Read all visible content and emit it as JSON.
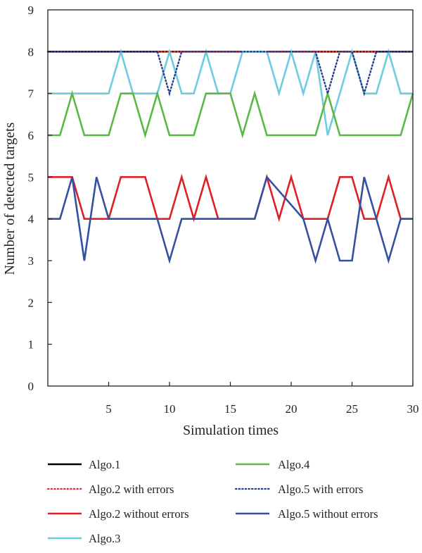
{
  "chart_data": {
    "type": "line",
    "xlabel": "Simulation times",
    "ylabel": "Number of detected targets",
    "xlim": [
      0,
      30
    ],
    "ylim": [
      0,
      9
    ],
    "xticks": [
      5,
      10,
      15,
      20,
      25,
      30
    ],
    "yticks": [
      0,
      1,
      2,
      3,
      4,
      5,
      6,
      7,
      8,
      9
    ],
    "grid": false,
    "legend_position": "below",
    "series": [
      {
        "name": "Algo.1",
        "color": "#000000",
        "dash": "solid",
        "x": [
          0,
          30
        ],
        "y": [
          8,
          8
        ]
      },
      {
        "name": "Algo.2 with errors",
        "color": "#e8302a",
        "dash": "dotted",
        "x": [
          0,
          30
        ],
        "y": [
          8,
          8
        ]
      },
      {
        "name": "Algo.2 without errors",
        "color": "#e01e25",
        "dash": "solid",
        "x": [
          0,
          2,
          3,
          5,
          6,
          8,
          9,
          10,
          11,
          12,
          13,
          14,
          15,
          16,
          17,
          18,
          19,
          20,
          21,
          22,
          23,
          24,
          25,
          26,
          27,
          28,
          29,
          30
        ],
        "y": [
          5,
          5,
          4,
          4,
          5,
          5,
          4,
          4,
          5,
          4,
          5,
          4,
          4,
          4,
          4,
          5,
          4,
          5,
          4,
          4,
          4,
          5,
          5,
          4,
          4,
          5,
          4,
          4
        ]
      },
      {
        "name": "Algo.3",
        "color": "#6ccde0",
        "dash": "solid",
        "x": [
          0,
          5,
          6,
          7,
          9,
          10,
          11,
          12,
          13,
          14,
          15,
          16,
          17,
          18,
          19,
          20,
          21,
          22,
          23,
          24,
          25,
          26,
          27,
          28,
          29,
          30
        ],
        "y": [
          7,
          7,
          8,
          7,
          7,
          8,
          7,
          7,
          8,
          7,
          7,
          8,
          8,
          8,
          7,
          8,
          7,
          8,
          6,
          7,
          8,
          7,
          7,
          8,
          7,
          7
        ]
      },
      {
        "name": "Algo.4",
        "color": "#5ab946",
        "dash": "solid",
        "x": [
          0,
          1,
          2,
          3,
          5,
          6,
          7,
          8,
          9,
          10,
          12,
          13,
          15,
          16,
          17,
          18,
          22,
          23,
          24,
          29,
          30
        ],
        "y": [
          6,
          6,
          7,
          6,
          6,
          7,
          7,
          6,
          7,
          6,
          6,
          7,
          7,
          6,
          7,
          6,
          6,
          7,
          6,
          6,
          7
        ]
      },
      {
        "name": "Algo.5 with errors",
        "color": "#283a8e",
        "dash": "dotted",
        "x": [
          0,
          9,
          10,
          11,
          22,
          23,
          24,
          25,
          26,
          27,
          30
        ],
        "y": [
          8,
          8,
          7,
          8,
          8,
          7,
          8,
          8,
          7,
          8,
          8
        ]
      },
      {
        "name": "Algo.5 without errors",
        "color": "#3350a3",
        "dash": "solid",
        "x": [
          0,
          1,
          2,
          3,
          4,
          5,
          9,
          10,
          11,
          17,
          18,
          21,
          22,
          23,
          24,
          25,
          26,
          27,
          28,
          29,
          30
        ],
        "y": [
          4,
          4,
          5,
          3,
          5,
          4,
          4,
          3,
          4,
          4,
          5,
          4,
          3,
          4,
          3,
          3,
          5,
          4,
          3,
          4,
          4
        ]
      }
    ],
    "legend_order": [
      0,
      4,
      1,
      5,
      2,
      6,
      3
    ]
  }
}
